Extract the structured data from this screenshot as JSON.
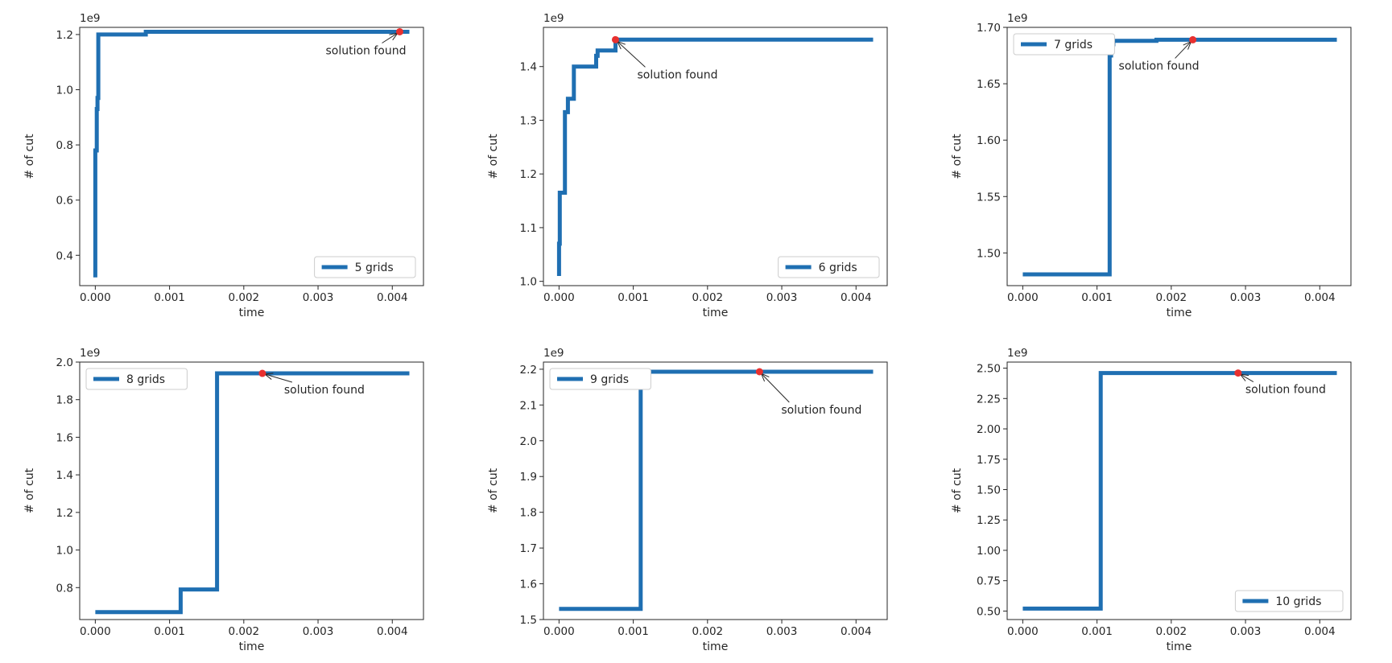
{
  "chart_data": [
    {
      "type": "line",
      "xlabel": "time",
      "ylabel": "# of cut",
      "offset_label": "1e9",
      "xlim": [
        -0.00021,
        0.00442
      ],
      "ylim": [
        0.29,
        1.226
      ],
      "xticks": [
        0.0,
        0.001,
        0.002,
        0.003,
        0.004
      ],
      "xtick_labels": [
        "0.000",
        "0.001",
        "0.002",
        "0.003",
        "0.004"
      ],
      "yticks": [
        0.4,
        0.6,
        0.8,
        1.0,
        1.2
      ],
      "ytick_labels": [
        "0.4",
        "0.6",
        "0.8",
        "1.0",
        "1.2"
      ],
      "series": [
        {
          "name": "5 grids",
          "color": "#1f6fb2",
          "x": [
            0.0,
            0.0,
            2e-05,
            2e-05,
            3e-05,
            3e-05,
            4e-05,
            4e-05,
            0.00068,
            0.00068,
            0.00423
          ],
          "y": [
            0.32,
            0.78,
            0.78,
            0.93,
            0.93,
            0.97,
            0.97,
            1.2,
            1.2,
            1.21,
            1.21
          ]
        }
      ],
      "solution_found": {
        "x": 0.0041,
        "y": 1.21,
        "label": "solution found"
      },
      "legend_loc": "lower-right"
    },
    {
      "type": "line",
      "xlabel": "time",
      "ylabel": "# of cut",
      "offset_label": "1e9",
      "xlim": [
        -0.00021,
        0.00442
      ],
      "ylim": [
        0.992,
        1.473
      ],
      "xticks": [
        0.0,
        0.001,
        0.002,
        0.003,
        0.004
      ],
      "xtick_labels": [
        "0.000",
        "0.001",
        "0.002",
        "0.003",
        "0.004"
      ],
      "yticks": [
        1.0,
        1.1,
        1.2,
        1.3,
        1.4
      ],
      "ytick_labels": [
        "1.0",
        "1.1",
        "1.2",
        "1.3",
        "1.4"
      ],
      "series": [
        {
          "name": "6 grids",
          "color": "#1f6fb2",
          "x": [
            0.0,
            0.0,
            1e-05,
            1e-05,
            2e-05,
            2e-05,
            8e-05,
            8e-05,
            0.00012,
            0.00012,
            0.0002,
            0.0002,
            0.0005,
            0.0005,
            0.00052,
            0.00052,
            0.00076,
            0.00076,
            0.00423
          ],
          "y": [
            1.01,
            1.07,
            1.07,
            1.165,
            1.165,
            1.165,
            1.165,
            1.315,
            1.315,
            1.34,
            1.34,
            1.4,
            1.4,
            1.42,
            1.42,
            1.43,
            1.43,
            1.45,
            1.45
          ]
        }
      ],
      "solution_found": {
        "x": 0.00076,
        "y": 1.45,
        "label": "solution found"
      },
      "legend_loc": "lower-right"
    },
    {
      "type": "line",
      "xlabel": "time",
      "ylabel": "# of cut",
      "offset_label": "1e9",
      "xlim": [
        -0.00021,
        0.00442
      ],
      "ylim": [
        1.471,
        1.7
      ],
      "xticks": [
        0.0,
        0.001,
        0.002,
        0.003,
        0.004
      ],
      "xtick_labels": [
        "0.000",
        "0.001",
        "0.002",
        "0.003",
        "0.004"
      ],
      "yticks": [
        1.5,
        1.55,
        1.6,
        1.65,
        1.7
      ],
      "ytick_labels": [
        "1.50",
        "1.55",
        "1.60",
        "1.65",
        "1.70"
      ],
      "series": [
        {
          "name": "7 grids",
          "color": "#1f6fb2",
          "x": [
            0.0,
            0.00117,
            0.00117,
            0.00119,
            0.00119,
            0.00122,
            0.00122,
            0.0018,
            0.0018,
            0.00423
          ],
          "y": [
            1.481,
            1.481,
            1.675,
            1.675,
            1.685,
            1.685,
            1.688,
            1.688,
            1.689,
            1.689
          ]
        }
      ],
      "solution_found": {
        "x": 0.00229,
        "y": 1.689,
        "label": "solution found"
      },
      "legend_loc": "upper-left"
    },
    {
      "type": "line",
      "xlabel": "time",
      "ylabel": "# of cut",
      "offset_label": "1e9",
      "xlim": [
        -0.00021,
        0.00442
      ],
      "ylim": [
        0.63,
        2.0
      ],
      "xticks": [
        0.0,
        0.001,
        0.002,
        0.003,
        0.004
      ],
      "xtick_labels": [
        "0.000",
        "0.001",
        "0.002",
        "0.003",
        "0.004"
      ],
      "yticks": [
        0.8,
        1.0,
        1.2,
        1.4,
        1.6,
        1.8,
        2.0
      ],
      "ytick_labels": [
        "0.8",
        "1.0",
        "1.2",
        "1.4",
        "1.6",
        "1.8",
        "2.0"
      ],
      "series": [
        {
          "name": "8 grids",
          "color": "#1f6fb2",
          "x": [
            0.0,
            0.00115,
            0.00115,
            0.00164,
            0.00164,
            0.00423
          ],
          "y": [
            0.67,
            0.67,
            0.79,
            0.79,
            1.94,
            1.94
          ]
        }
      ],
      "solution_found": {
        "x": 0.00225,
        "y": 1.94,
        "label": "solution found"
      },
      "legend_loc": "upper-left"
    },
    {
      "type": "line",
      "xlabel": "time",
      "ylabel": "# of cut",
      "offset_label": "1e9",
      "xlim": [
        -0.00021,
        0.00442
      ],
      "ylim": [
        1.5,
        2.22
      ],
      "xticks": [
        0.0,
        0.001,
        0.002,
        0.003,
        0.004
      ],
      "xtick_labels": [
        "0.000",
        "0.001",
        "0.002",
        "0.003",
        "0.004"
      ],
      "yticks": [
        1.5,
        1.6,
        1.7,
        1.8,
        1.9,
        2.0,
        2.1,
        2.2
      ],
      "ytick_labels": [
        "1.5",
        "1.6",
        "1.7",
        "1.8",
        "1.9",
        "2.0",
        "2.1",
        "2.2"
      ],
      "series": [
        {
          "name": "9 grids",
          "color": "#1f6fb2",
          "x": [
            0.0,
            0.0011,
            0.0011,
            0.0012,
            0.0012,
            0.00423
          ],
          "y": [
            1.53,
            1.53,
            2.165,
            2.165,
            2.193,
            2.193
          ]
        }
      ],
      "solution_found": {
        "x": 0.0027,
        "y": 2.193,
        "label": "solution found"
      },
      "legend_loc": "upper-left"
    },
    {
      "type": "line",
      "xlabel": "time",
      "ylabel": "# of cut",
      "offset_label": "1e9",
      "xlim": [
        -0.00021,
        0.00442
      ],
      "ylim": [
        0.43,
        2.55
      ],
      "xticks": [
        0.0,
        0.001,
        0.002,
        0.003,
        0.004
      ],
      "xtick_labels": [
        "0.000",
        "0.001",
        "0.002",
        "0.003",
        "0.004"
      ],
      "yticks": [
        0.5,
        0.75,
        1.0,
        1.25,
        1.5,
        1.75,
        2.0,
        2.25,
        2.5
      ],
      "ytick_labels": [
        "0.50",
        "0.75",
        "1.00",
        "1.25",
        "1.50",
        "1.75",
        "2.00",
        "2.25",
        "2.50"
      ],
      "series": [
        {
          "name": "10 grids",
          "color": "#1f6fb2",
          "x": [
            0.0,
            0.00105,
            0.00105,
            0.00423
          ],
          "y": [
            0.52,
            0.52,
            2.46,
            2.46
          ]
        }
      ],
      "solution_found": {
        "x": 0.0029,
        "y": 2.46,
        "label": "solution found"
      },
      "legend_loc": "lower-right"
    }
  ]
}
